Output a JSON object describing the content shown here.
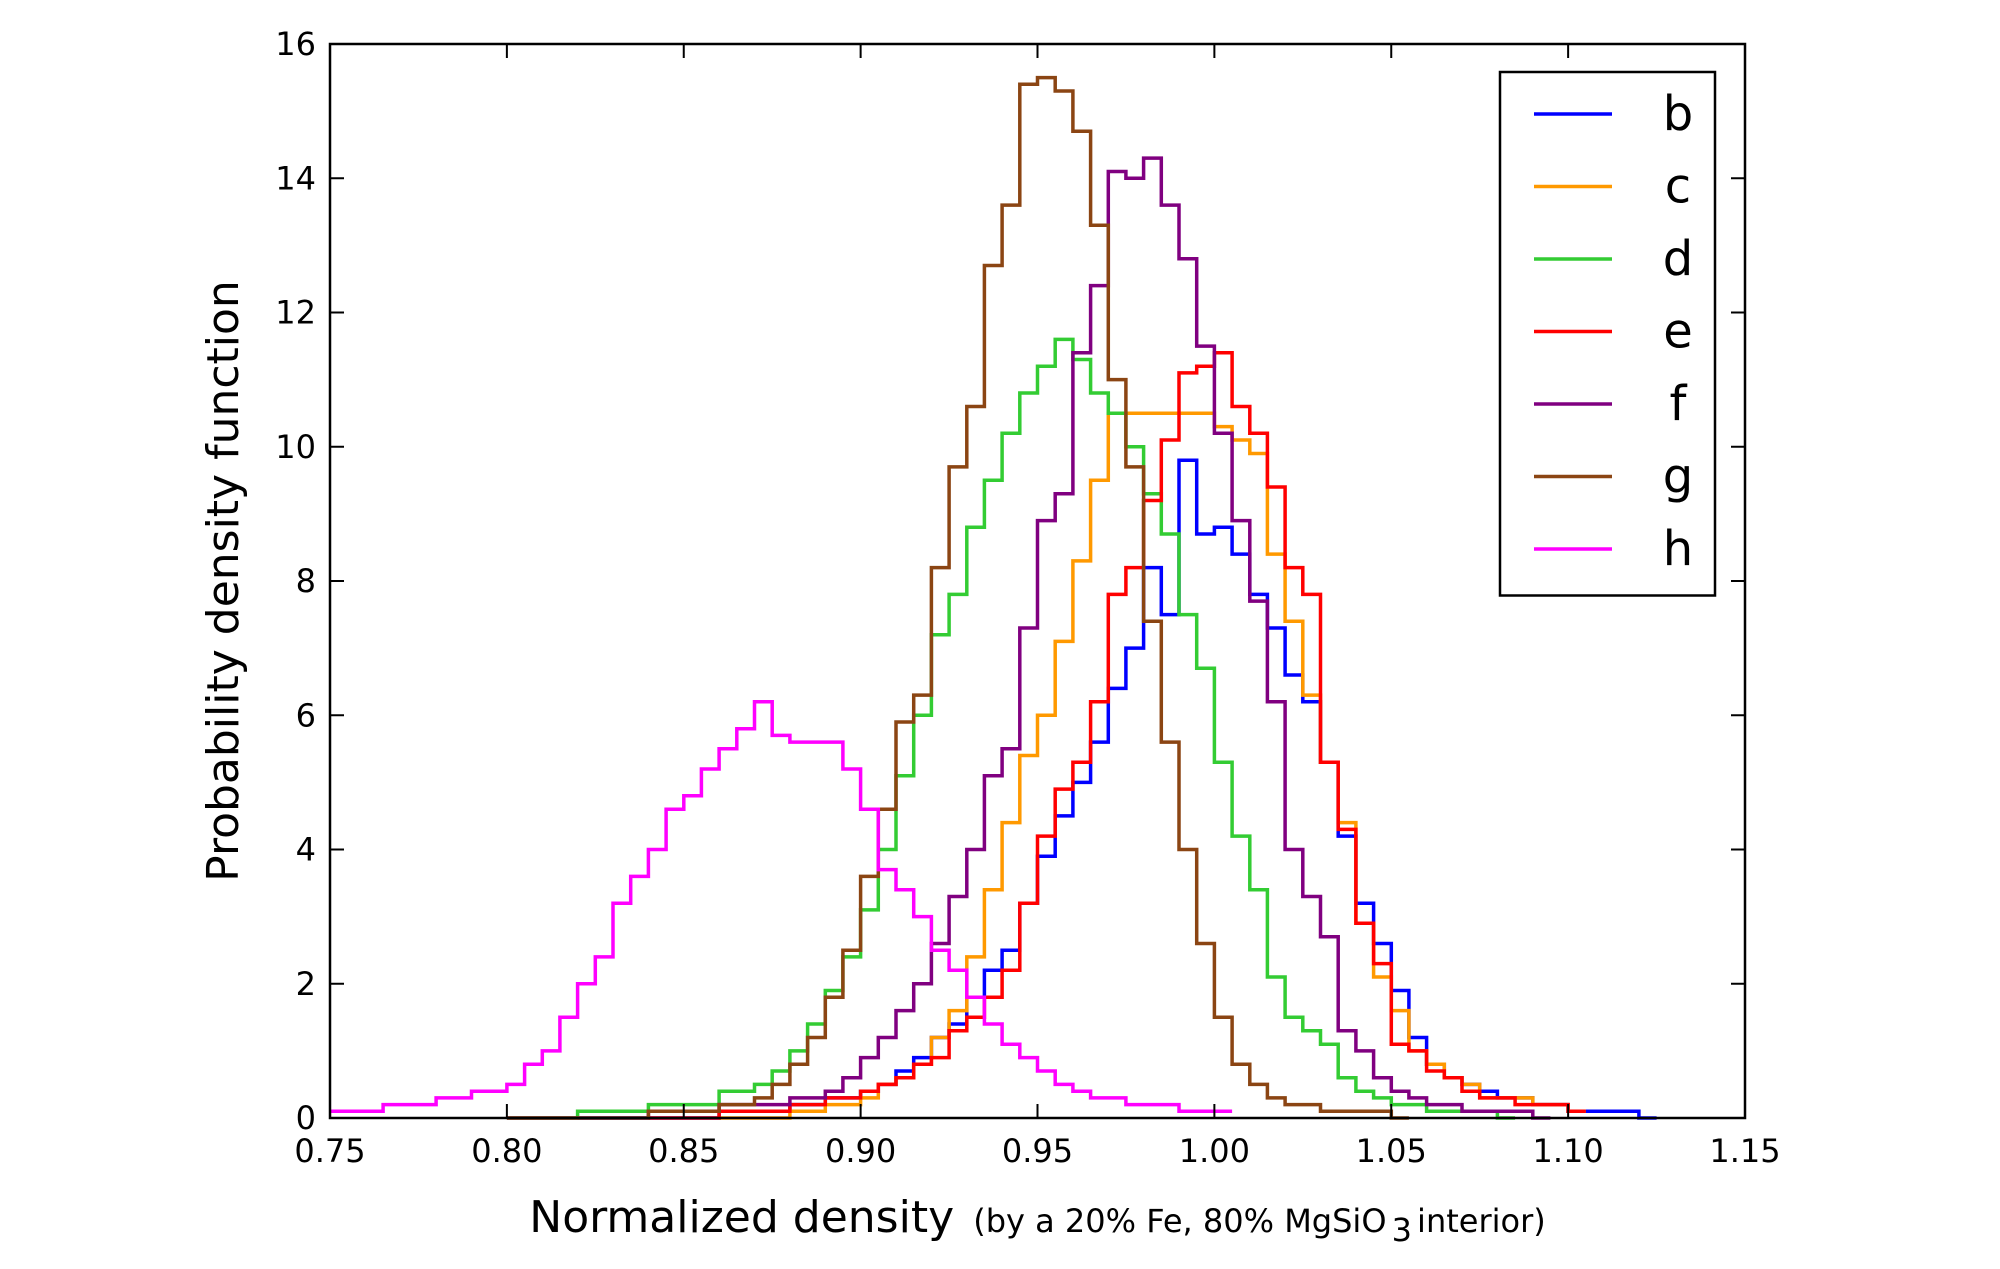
{
  "chart_data": {
    "type": "line",
    "style": "step-histogram",
    "title": "",
    "ylabel": "Probability density function",
    "xlabel": {
      "main": "Normalized density",
      "sub_prefix": "(by a 20% Fe, 80% MgSiO",
      "sub_subscript": "3",
      "sub_suffix": " interior)"
    },
    "xlim": [
      0.75,
      1.15
    ],
    "ylim": [
      0,
      16
    ],
    "xticks": [
      "0.75",
      "0.80",
      "0.85",
      "0.90",
      "0.95",
      "1.00",
      "1.05",
      "1.10",
      "1.15"
    ],
    "yticks": [
      "0",
      "2",
      "4",
      "6",
      "8",
      "10",
      "12",
      "14",
      "16"
    ],
    "grid": false,
    "legend_position": "top-right",
    "series": [
      {
        "name": "b",
        "color": "#0000ff",
        "points": [
          [
            0.82,
            0
          ],
          [
            0.84,
            0
          ],
          [
            0.86,
            0.1
          ],
          [
            0.88,
            0.2
          ],
          [
            0.89,
            0.3
          ],
          [
            0.9,
            0.4
          ],
          [
            0.905,
            0.5
          ],
          [
            0.91,
            0.7
          ],
          [
            0.915,
            0.9
          ],
          [
            0.92,
            1.2
          ],
          [
            0.925,
            1.4
          ],
          [
            0.93,
            1.8
          ],
          [
            0.935,
            2.2
          ],
          [
            0.94,
            2.5
          ],
          [
            0.945,
            3.2
          ],
          [
            0.95,
            3.9
          ],
          [
            0.955,
            4.5
          ],
          [
            0.96,
            5.0
          ],
          [
            0.965,
            5.6
          ],
          [
            0.97,
            6.4
          ],
          [
            0.975,
            7.0
          ],
          [
            0.98,
            8.2
          ],
          [
            0.985,
            7.5
          ],
          [
            0.99,
            9.8
          ],
          [
            0.995,
            8.7
          ],
          [
            1.0,
            8.8
          ],
          [
            1.005,
            8.4
          ],
          [
            1.01,
            7.8
          ],
          [
            1.015,
            7.3
          ],
          [
            1.02,
            6.6
          ],
          [
            1.025,
            6.2
          ],
          [
            1.03,
            5.3
          ],
          [
            1.035,
            4.2
          ],
          [
            1.04,
            3.2
          ],
          [
            1.045,
            2.6
          ],
          [
            1.05,
            1.9
          ],
          [
            1.055,
            1.2
          ],
          [
            1.06,
            0.8
          ],
          [
            1.065,
            0.6
          ],
          [
            1.07,
            0.5
          ],
          [
            1.075,
            0.4
          ],
          [
            1.08,
            0.3
          ],
          [
            1.09,
            0.2
          ],
          [
            1.1,
            0.1
          ],
          [
            1.12,
            0
          ]
        ]
      },
      {
        "name": "c",
        "color": "#ff9900",
        "points": [
          [
            0.86,
            0
          ],
          [
            0.88,
            0.1
          ],
          [
            0.89,
            0.2
          ],
          [
            0.9,
            0.3
          ],
          [
            0.905,
            0.5
          ],
          [
            0.91,
            0.6
          ],
          [
            0.915,
            0.8
          ],
          [
            0.92,
            1.2
          ],
          [
            0.925,
            1.6
          ],
          [
            0.93,
            2.4
          ],
          [
            0.935,
            3.4
          ],
          [
            0.94,
            4.4
          ],
          [
            0.945,
            5.4
          ],
          [
            0.95,
            6.0
          ],
          [
            0.955,
            7.1
          ],
          [
            0.96,
            8.3
          ],
          [
            0.965,
            9.5
          ],
          [
            0.97,
            10.5
          ],
          [
            1.0,
            10.3
          ],
          [
            1.005,
            10.1
          ],
          [
            1.01,
            9.9
          ],
          [
            1.015,
            8.4
          ],
          [
            1.02,
            7.4
          ],
          [
            1.025,
            6.3
          ],
          [
            1.03,
            5.3
          ],
          [
            1.035,
            4.4
          ],
          [
            1.04,
            2.9
          ],
          [
            1.045,
            2.1
          ],
          [
            1.05,
            1.6
          ],
          [
            1.055,
            1.0
          ],
          [
            1.06,
            0.8
          ],
          [
            1.065,
            0.6
          ],
          [
            1.07,
            0.5
          ],
          [
            1.075,
            0.3
          ],
          [
            1.09,
            0.2
          ],
          [
            1.1,
            0.1
          ]
        ]
      },
      {
        "name": "d",
        "color": "#33cc33",
        "points": [
          [
            0.8,
            0
          ],
          [
            0.82,
            0.1
          ],
          [
            0.84,
            0.2
          ],
          [
            0.86,
            0.4
          ],
          [
            0.87,
            0.5
          ],
          [
            0.875,
            0.7
          ],
          [
            0.88,
            1.0
          ],
          [
            0.885,
            1.4
          ],
          [
            0.89,
            1.9
          ],
          [
            0.895,
            2.4
          ],
          [
            0.9,
            3.1
          ],
          [
            0.905,
            4.0
          ],
          [
            0.91,
            5.1
          ],
          [
            0.915,
            6.0
          ],
          [
            0.92,
            7.2
          ],
          [
            0.925,
            7.8
          ],
          [
            0.93,
            8.8
          ],
          [
            0.935,
            9.5
          ],
          [
            0.94,
            10.2
          ],
          [
            0.945,
            10.8
          ],
          [
            0.95,
            11.2
          ],
          [
            0.955,
            11.6
          ],
          [
            0.96,
            11.3
          ],
          [
            0.965,
            10.8
          ],
          [
            0.97,
            10.5
          ],
          [
            0.975,
            10.0
          ],
          [
            0.98,
            9.3
          ],
          [
            0.985,
            8.7
          ],
          [
            0.99,
            7.5
          ],
          [
            0.995,
            6.7
          ],
          [
            1.0,
            5.3
          ],
          [
            1.005,
            4.2
          ],
          [
            1.01,
            3.4
          ],
          [
            1.015,
            2.1
          ],
          [
            1.02,
            1.5
          ],
          [
            1.025,
            1.3
          ],
          [
            1.03,
            1.1
          ],
          [
            1.035,
            0.6
          ],
          [
            1.04,
            0.4
          ],
          [
            1.045,
            0.3
          ],
          [
            1.05,
            0.2
          ],
          [
            1.06,
            0.1
          ],
          [
            1.08,
            0
          ]
        ]
      },
      {
        "name": "e",
        "color": "#ff0000",
        "points": [
          [
            0.84,
            0
          ],
          [
            0.86,
            0.1
          ],
          [
            0.88,
            0.2
          ],
          [
            0.89,
            0.3
          ],
          [
            0.9,
            0.4
          ],
          [
            0.905,
            0.5
          ],
          [
            0.91,
            0.6
          ],
          [
            0.915,
            0.8
          ],
          [
            0.92,
            0.9
          ],
          [
            0.925,
            1.3
          ],
          [
            0.93,
            1.5
          ],
          [
            0.935,
            1.8
          ],
          [
            0.94,
            2.2
          ],
          [
            0.945,
            3.2
          ],
          [
            0.95,
            4.2
          ],
          [
            0.955,
            4.9
          ],
          [
            0.96,
            5.3
          ],
          [
            0.965,
            6.2
          ],
          [
            0.97,
            7.8
          ],
          [
            0.975,
            8.2
          ],
          [
            0.98,
            9.2
          ],
          [
            0.985,
            10.1
          ],
          [
            0.99,
            11.1
          ],
          [
            0.995,
            11.2
          ],
          [
            1.0,
            11.4
          ],
          [
            1.005,
            10.6
          ],
          [
            1.01,
            10.2
          ],
          [
            1.015,
            9.4
          ],
          [
            1.02,
            8.2
          ],
          [
            1.025,
            7.8
          ],
          [
            1.03,
            5.3
          ],
          [
            1.035,
            4.3
          ],
          [
            1.04,
            2.9
          ],
          [
            1.045,
            2.3
          ],
          [
            1.05,
            1.1
          ],
          [
            1.055,
            1.0
          ],
          [
            1.06,
            0.7
          ],
          [
            1.065,
            0.6
          ],
          [
            1.07,
            0.4
          ],
          [
            1.075,
            0.3
          ],
          [
            1.085,
            0.2
          ],
          [
            1.1,
            0.1
          ]
        ]
      },
      {
        "name": "f",
        "color": "#800080",
        "points": [
          [
            0.8,
            0
          ],
          [
            0.84,
            0.1
          ],
          [
            0.86,
            0.2
          ],
          [
            0.88,
            0.3
          ],
          [
            0.89,
            0.4
          ],
          [
            0.895,
            0.6
          ],
          [
            0.9,
            0.9
          ],
          [
            0.905,
            1.2
          ],
          [
            0.91,
            1.6
          ],
          [
            0.915,
            2.0
          ],
          [
            0.92,
            2.6
          ],
          [
            0.925,
            3.3
          ],
          [
            0.93,
            4.0
          ],
          [
            0.935,
            5.1
          ],
          [
            0.94,
            5.5
          ],
          [
            0.945,
            7.3
          ],
          [
            0.95,
            8.9
          ],
          [
            0.955,
            9.3
          ],
          [
            0.96,
            11.4
          ],
          [
            0.965,
            12.4
          ],
          [
            0.97,
            14.1
          ],
          [
            0.975,
            14.0
          ],
          [
            0.98,
            14.3
          ],
          [
            0.985,
            13.6
          ],
          [
            0.99,
            12.8
          ],
          [
            0.995,
            11.5
          ],
          [
            1.0,
            10.2
          ],
          [
            1.005,
            8.9
          ],
          [
            1.01,
            7.7
          ],
          [
            1.015,
            6.2
          ],
          [
            1.02,
            4.0
          ],
          [
            1.025,
            3.3
          ],
          [
            1.03,
            2.7
          ],
          [
            1.035,
            1.3
          ],
          [
            1.04,
            1.0
          ],
          [
            1.045,
            0.6
          ],
          [
            1.05,
            0.4
          ],
          [
            1.055,
            0.3
          ],
          [
            1.06,
            0.2
          ],
          [
            1.07,
            0.1
          ],
          [
            1.09,
            0
          ]
        ]
      },
      {
        "name": "g",
        "color": "#8b4513",
        "points": [
          [
            0.8,
            0
          ],
          [
            0.84,
            0.1
          ],
          [
            0.86,
            0.2
          ],
          [
            0.87,
            0.3
          ],
          [
            0.875,
            0.5
          ],
          [
            0.88,
            0.8
          ],
          [
            0.885,
            1.2
          ],
          [
            0.89,
            1.8
          ],
          [
            0.895,
            2.5
          ],
          [
            0.9,
            3.6
          ],
          [
            0.905,
            4.6
          ],
          [
            0.91,
            5.9
          ],
          [
            0.915,
            6.3
          ],
          [
            0.92,
            8.2
          ],
          [
            0.925,
            9.7
          ],
          [
            0.93,
            10.6
          ],
          [
            0.935,
            12.7
          ],
          [
            0.94,
            13.6
          ],
          [
            0.945,
            15.4
          ],
          [
            0.95,
            15.5
          ],
          [
            0.955,
            15.3
          ],
          [
            0.96,
            14.7
          ],
          [
            0.965,
            13.3
          ],
          [
            0.97,
            11.0
          ],
          [
            0.975,
            9.7
          ],
          [
            0.98,
            7.4
          ],
          [
            0.985,
            5.6
          ],
          [
            0.99,
            4.0
          ],
          [
            0.995,
            2.6
          ],
          [
            1.0,
            1.5
          ],
          [
            1.005,
            0.8
          ],
          [
            1.01,
            0.5
          ],
          [
            1.015,
            0.3
          ],
          [
            1.02,
            0.2
          ],
          [
            1.03,
            0.1
          ],
          [
            1.05,
            0
          ]
        ]
      },
      {
        "name": "h",
        "color": "#ff00ff",
        "points": [
          [
            0.75,
            0.1
          ],
          [
            0.765,
            0.2
          ],
          [
            0.78,
            0.3
          ],
          [
            0.79,
            0.4
          ],
          [
            0.8,
            0.5
          ],
          [
            0.805,
            0.8
          ],
          [
            0.81,
            1.0
          ],
          [
            0.815,
            1.5
          ],
          [
            0.82,
            2.0
          ],
          [
            0.825,
            2.4
          ],
          [
            0.83,
            3.2
          ],
          [
            0.835,
            3.6
          ],
          [
            0.84,
            4.0
          ],
          [
            0.845,
            4.6
          ],
          [
            0.85,
            4.8
          ],
          [
            0.855,
            5.2
          ],
          [
            0.86,
            5.5
          ],
          [
            0.865,
            5.8
          ],
          [
            0.87,
            6.2
          ],
          [
            0.875,
            5.7
          ],
          [
            0.88,
            5.6
          ],
          [
            0.885,
            5.6
          ],
          [
            0.89,
            5.6
          ],
          [
            0.895,
            5.2
          ],
          [
            0.9,
            4.6
          ],
          [
            0.905,
            3.7
          ],
          [
            0.91,
            3.4
          ],
          [
            0.915,
            3.0
          ],
          [
            0.92,
            2.5
          ],
          [
            0.925,
            2.2
          ],
          [
            0.93,
            1.8
          ],
          [
            0.935,
            1.4
          ],
          [
            0.94,
            1.1
          ],
          [
            0.945,
            0.9
          ],
          [
            0.95,
            0.7
          ],
          [
            0.955,
            0.5
          ],
          [
            0.96,
            0.4
          ],
          [
            0.965,
            0.3
          ],
          [
            0.975,
            0.2
          ],
          [
            0.99,
            0.1
          ],
          [
            1.0,
            0.1
          ]
        ]
      }
    ]
  }
}
